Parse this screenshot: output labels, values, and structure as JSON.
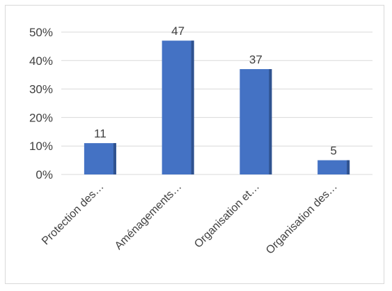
{
  "chart_data": {
    "type": "bar",
    "categories": [
      "Protection des…",
      "Aménagements…",
      "Organisation et…",
      "Organisation des…"
    ],
    "values": [
      11,
      47,
      37,
      5
    ],
    "data_labels": [
      "11",
      "47",
      "37",
      "5"
    ],
    "y_ticks": [
      "0%",
      "10%",
      "20%",
      "30%",
      "40%",
      "50%"
    ],
    "y_tick_values": [
      0,
      10,
      20,
      30,
      40,
      50
    ],
    "ylim": [
      0,
      50
    ],
    "grid": true,
    "legend": "none",
    "title": "",
    "xlabel": "",
    "ylabel": "",
    "colors": {
      "bar": "#4472c4",
      "bar_shadow": "#2f528f",
      "grid": "#d9d9d9",
      "text": "#404040"
    }
  }
}
